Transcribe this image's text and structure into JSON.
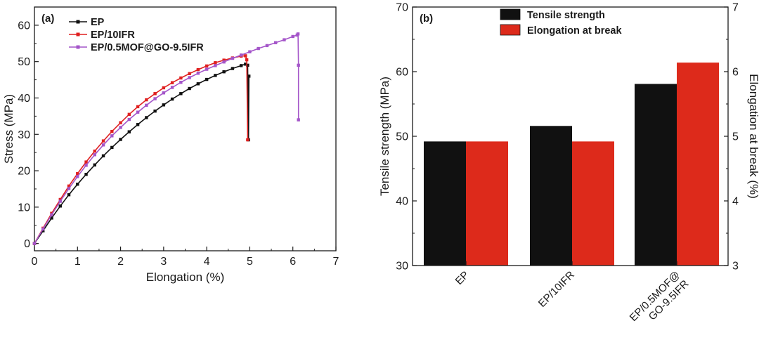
{
  "chart_data": [
    {
      "panel": "(a)",
      "type": "line",
      "xlabel": "Elongation (%)",
      "ylabel": "Stress (MPa)",
      "xlim": [
        0,
        7
      ],
      "ylim": [
        -2,
        65
      ],
      "xticks": [
        "0",
        "1",
        "2",
        "3",
        "4",
        "5",
        "6",
        "7"
      ],
      "yticks": [
        "0",
        "10",
        "20",
        "30",
        "40",
        "50",
        "60"
      ],
      "legend_position": "top-left",
      "series": [
        {
          "name": "EP",
          "color": "#111111",
          "x": [
            0,
            0.2,
            0.4,
            0.6,
            0.8,
            1.0,
            1.2,
            1.4,
            1.6,
            1.8,
            2.0,
            2.2,
            2.4,
            2.6,
            2.8,
            3.0,
            3.2,
            3.4,
            3.6,
            3.8,
            4.0,
            4.2,
            4.4,
            4.6,
            4.8,
            4.9,
            4.95,
            4.97,
            4.98
          ],
          "y": [
            0,
            3.5,
            7.0,
            10.3,
            13.4,
            16.3,
            19.0,
            21.6,
            24.1,
            26.4,
            28.6,
            30.7,
            32.7,
            34.6,
            36.4,
            38.1,
            39.7,
            41.2,
            42.6,
            43.9,
            45.1,
            46.2,
            47.2,
            48.1,
            48.9,
            49.3,
            49.0,
            28.5,
            46.0
          ]
        },
        {
          "name": "EP/10IFR",
          "color": "#e02020",
          "x": [
            0,
            0.2,
            0.4,
            0.6,
            0.8,
            1.0,
            1.2,
            1.4,
            1.6,
            1.8,
            2.0,
            2.2,
            2.4,
            2.6,
            2.8,
            3.0,
            3.2,
            3.4,
            3.6,
            3.8,
            4.0,
            4.2,
            4.4,
            4.6,
            4.8,
            4.9,
            4.93,
            4.95
          ],
          "y": [
            0,
            4.2,
            8.3,
            12.1,
            15.8,
            19.2,
            22.4,
            25.4,
            28.2,
            30.8,
            33.2,
            35.5,
            37.6,
            39.5,
            41.2,
            42.8,
            44.2,
            45.5,
            46.7,
            47.8,
            48.8,
            49.7,
            50.4,
            51.0,
            51.5,
            51.6,
            50.5,
            28.5
          ]
        },
        {
          "name": "EP/0.5MOF@GO-9.5IFR",
          "color": "#a455c9",
          "x": [
            0,
            0.2,
            0.4,
            0.6,
            0.8,
            1.0,
            1.2,
            1.4,
            1.6,
            1.8,
            2.0,
            2.2,
            2.4,
            2.6,
            2.8,
            3.0,
            3.2,
            3.4,
            3.6,
            3.8,
            4.0,
            4.2,
            4.4,
            4.6,
            4.8,
            5.0,
            5.2,
            5.4,
            5.6,
            5.8,
            6.0,
            6.1,
            6.12,
            6.13,
            6.13
          ],
          "y": [
            0,
            4.0,
            7.9,
            11.6,
            15.1,
            18.4,
            21.5,
            24.4,
            27.1,
            29.6,
            31.9,
            34.1,
            36.1,
            38.0,
            39.8,
            41.4,
            42.9,
            44.3,
            45.6,
            46.8,
            47.9,
            48.9,
            49.9,
            50.9,
            51.8,
            52.7,
            53.6,
            54.4,
            55.2,
            56.0,
            56.9,
            57.3,
            57.6,
            49.0,
            34.0
          ]
        }
      ]
    },
    {
      "panel": "(b)",
      "type": "bar",
      "categories": [
        "EP",
        "EP/10IFR",
        "EP/0.5MOF@\nGO-9.5IFR"
      ],
      "ylabel": "Tensile strength (MPa)",
      "y2label": "Elongation at break (%)",
      "ylim": [
        30,
        70
      ],
      "y2lim": [
        3,
        7
      ],
      "yticks": [
        "30",
        "40",
        "50",
        "60",
        "70"
      ],
      "y2ticks": [
        "3",
        "4",
        "5",
        "6",
        "7"
      ],
      "legend_position": "top-center",
      "series": [
        {
          "name": "Tensile strength",
          "color": "#111111",
          "axis": "left",
          "values": [
            49.2,
            51.6,
            58.1
          ]
        },
        {
          "name": "Elongation at break",
          "color": "#dd2a1b",
          "axis": "right",
          "values": [
            4.92,
            4.92,
            6.14
          ]
        }
      ]
    }
  ]
}
